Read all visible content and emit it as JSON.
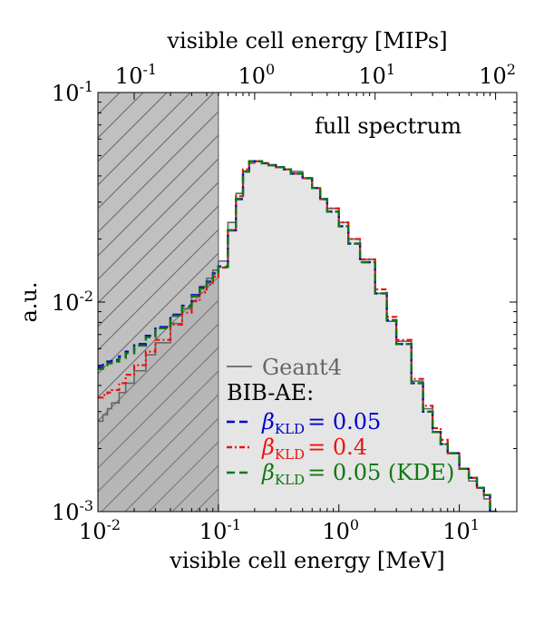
{
  "chart_data": {
    "type": "step",
    "title": "",
    "annotation": "full spectrum",
    "xlabel": "visible cell energy [MeV]",
    "xlabel_top": "visible cell energy [MIPs]",
    "ylabel": "a.u.",
    "xscale": "log",
    "yscale": "log",
    "xlim": [
      0.01,
      30
    ],
    "ylim": [
      0.001,
      0.1
    ],
    "x_ticks": [
      {
        "value": 0.01,
        "base": "10",
        "exp": "-2"
      },
      {
        "value": 0.1,
        "base": "10",
        "exp": "-1"
      },
      {
        "value": 1,
        "base": "10",
        "exp": "0"
      },
      {
        "value": 10,
        "base": "10",
        "exp": "1"
      }
    ],
    "x_top_ticks": [
      {
        "value": 0.1,
        "base": "10",
        "exp": "-1"
      },
      {
        "value": 1,
        "base": "10",
        "exp": "0"
      },
      {
        "value": 10,
        "base": "10",
        "exp": "1"
      },
      {
        "value": 100,
        "base": "10",
        "exp": "2"
      }
    ],
    "y_ticks": [
      {
        "value": 0.001,
        "base": "10",
        "exp": "-3"
      },
      {
        "value": 0.01,
        "base": "10",
        "exp": "-2"
      },
      {
        "value": 0.1,
        "base": "10",
        "exp": "-1"
      }
    ],
    "mip_mev": 0.2,
    "hatched_region": {
      "x": [
        0.01,
        0.1
      ]
    },
    "legend": {
      "placement": "lower-left",
      "header": "BIB-AE:",
      "entries": [
        {
          "label": "Geant4",
          "color": "#666666",
          "style": "solid"
        },
        {
          "beta": "β",
          "sub": "KLD",
          "label": "= 0.05",
          "color": "#0000cc",
          "style": "dashed"
        },
        {
          "beta": "β",
          "sub": "KLD",
          "label": "= 0.4",
          "color": "#ee1111",
          "style": "dashdot"
        },
        {
          "beta": "β",
          "sub": "KLD",
          "label": "= 0.05 (KDE)",
          "color": "#117711",
          "style": "dashed"
        }
      ]
    },
    "series": [
      {
        "name": "Geant4",
        "color": "#666666",
        "x": [
          0.01,
          0.011,
          0.012,
          0.013,
          0.015,
          0.017,
          0.02,
          0.025,
          0.03,
          0.04,
          0.05,
          0.06,
          0.07,
          0.08,
          0.09,
          0.1,
          0.12,
          0.14,
          0.16,
          0.18,
          0.2,
          0.23,
          0.26,
          0.3,
          0.35,
          0.4,
          0.5,
          0.6,
          0.7,
          0.8,
          1.0,
          1.2,
          1.5,
          2.0,
          2.5,
          3.0,
          4.0,
          5.0,
          6.0,
          7.0,
          8.0,
          10.0,
          12.0,
          14.0,
          16.0,
          18.0,
          20.0,
          21.0
        ],
        "y": [
          0.0027,
          0.0029,
          0.0031,
          0.0033,
          0.0037,
          0.0041,
          0.0047,
          0.0056,
          0.0064,
          0.0079,
          0.0093,
          0.0106,
          0.0119,
          0.013,
          0.0142,
          0.0157,
          0.024,
          0.033,
          0.042,
          0.046,
          0.047,
          0.046,
          0.045,
          0.044,
          0.043,
          0.042,
          0.039,
          0.035,
          0.031,
          0.028,
          0.024,
          0.02,
          0.016,
          0.011,
          0.0081,
          0.0065,
          0.0042,
          0.0031,
          0.0024,
          0.0021,
          0.0019,
          0.0016,
          0.0014,
          0.0013,
          0.00115,
          0.00095,
          0.0008,
          0.0008
        ]
      },
      {
        "name": "β KLD = 0.05",
        "color": "#0000cc",
        "x": [
          0.01,
          0.011,
          0.012,
          0.013,
          0.015,
          0.017,
          0.02,
          0.025,
          0.03,
          0.04,
          0.05,
          0.06,
          0.07,
          0.08,
          0.09,
          0.1,
          0.12,
          0.14,
          0.16,
          0.18,
          0.2,
          0.23,
          0.26,
          0.3,
          0.35,
          0.4,
          0.5,
          0.6,
          0.7,
          0.8,
          1.0,
          1.2,
          1.5,
          2.0,
          2.5,
          3.0,
          4.0,
          5.0,
          6.0,
          7.0,
          8.0,
          10.0,
          12.0,
          14.0,
          16.0,
          18.0,
          20.0,
          21.0
        ],
        "y": [
          0.0049,
          0.0051,
          0.0052,
          0.0053,
          0.0055,
          0.0058,
          0.0063,
          0.0069,
          0.0076,
          0.0087,
          0.0096,
          0.0108,
          0.0117,
          0.0125,
          0.0137,
          0.0148,
          0.022,
          0.031,
          0.042,
          0.047,
          0.047,
          0.046,
          0.045,
          0.044,
          0.043,
          0.041,
          0.039,
          0.035,
          0.031,
          0.027,
          0.023,
          0.019,
          0.0155,
          0.011,
          0.0082,
          0.0063,
          0.0041,
          0.003,
          0.0024,
          0.0021,
          0.0019,
          0.0016,
          0.00145,
          0.0013,
          0.0012,
          0.001,
          0.0009,
          0.0008
        ]
      },
      {
        "name": "β KLD = 0.4",
        "color": "#ee1111",
        "x": [
          0.01,
          0.011,
          0.012,
          0.013,
          0.015,
          0.017,
          0.02,
          0.025,
          0.03,
          0.04,
          0.05,
          0.06,
          0.07,
          0.08,
          0.09,
          0.1,
          0.12,
          0.14,
          0.16,
          0.18,
          0.2,
          0.23,
          0.26,
          0.3,
          0.35,
          0.4,
          0.5,
          0.6,
          0.7,
          0.8,
          1.0,
          1.2,
          1.5,
          2.0,
          2.5,
          3.0,
          4.0,
          5.0,
          6.0,
          7.0,
          8.0,
          10.0,
          12.0,
          14.0,
          16.0,
          18.0,
          20.0,
          21.0
        ],
        "y": [
          0.0035,
          0.0036,
          0.0037,
          0.0038,
          0.0041,
          0.0045,
          0.005,
          0.0058,
          0.0066,
          0.0078,
          0.0089,
          0.0101,
          0.0111,
          0.0121,
          0.0132,
          0.0146,
          0.022,
          0.032,
          0.043,
          0.047,
          0.047,
          0.046,
          0.045,
          0.044,
          0.043,
          0.041,
          0.039,
          0.035,
          0.031,
          0.028,
          0.024,
          0.02,
          0.016,
          0.0115,
          0.0085,
          0.0066,
          0.0043,
          0.0032,
          0.0025,
          0.0022,
          0.0019,
          0.0016,
          0.00145,
          0.0013,
          0.0012,
          0.001,
          0.0009,
          0.0008
        ]
      },
      {
        "name": "β KLD = 0.05 (KDE)",
        "color": "#117711",
        "x": [
          0.01,
          0.011,
          0.012,
          0.013,
          0.015,
          0.017,
          0.02,
          0.025,
          0.03,
          0.04,
          0.05,
          0.06,
          0.07,
          0.08,
          0.09,
          0.1,
          0.12,
          0.14,
          0.16,
          0.18,
          0.2,
          0.23,
          0.26,
          0.3,
          0.35,
          0.4,
          0.5,
          0.6,
          0.7,
          0.8,
          1.0,
          1.2,
          1.5,
          2.0,
          2.5,
          3.0,
          4.0,
          5.0,
          6.0,
          7.0,
          8.0,
          10.0,
          12.0,
          14.0,
          16.0,
          18.0,
          20.0,
          21.0
        ],
        "y": [
          0.0048,
          0.005,
          0.0051,
          0.0052,
          0.0054,
          0.0057,
          0.0062,
          0.0068,
          0.0075,
          0.0086,
          0.0095,
          0.0107,
          0.0116,
          0.0124,
          0.0136,
          0.0147,
          0.022,
          0.031,
          0.042,
          0.047,
          0.047,
          0.046,
          0.045,
          0.044,
          0.043,
          0.041,
          0.039,
          0.035,
          0.031,
          0.027,
          0.023,
          0.019,
          0.0155,
          0.011,
          0.0082,
          0.0063,
          0.0041,
          0.003,
          0.0024,
          0.0021,
          0.0019,
          0.0016,
          0.00145,
          0.0013,
          0.0012,
          0.001,
          0.0009,
          0.0008
        ]
      }
    ]
  }
}
